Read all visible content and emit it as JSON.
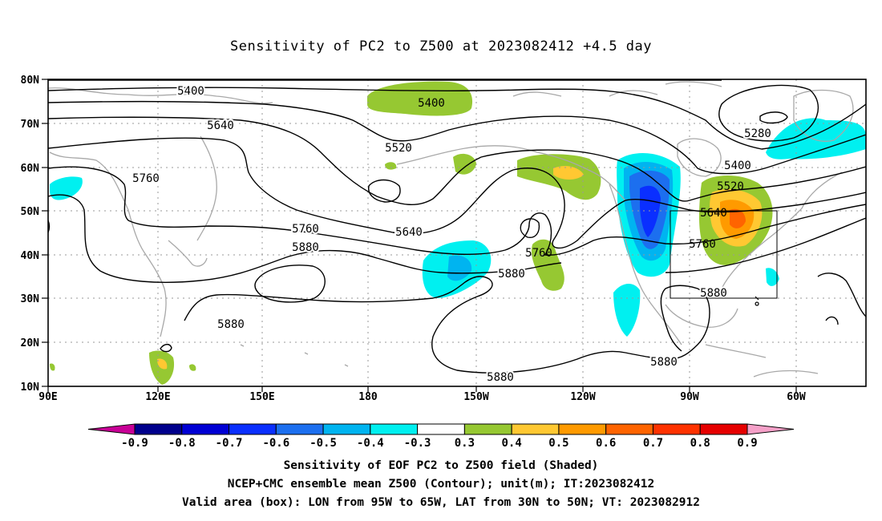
{
  "title": "Sensitivity of PC2 to Z500 at 2023082412 +4.5 day",
  "lat_labels": [
    "80N",
    "70N",
    "60N",
    "50N",
    "40N",
    "30N",
    "20N",
    "10N"
  ],
  "lon_labels": [
    "90E",
    "120E",
    "150E",
    "180",
    "150W",
    "120W",
    "90W",
    "60W"
  ],
  "contour_labels": [
    "5400",
    "5400",
    "5280",
    "5640",
    "5520",
    "5760",
    "5400",
    "5520",
    "5640",
    "5640",
    "5760",
    "5760",
    "5880",
    "5760",
    "5880",
    "5880",
    "5880",
    "5880",
    "5880"
  ],
  "colorbar": {
    "labels": [
      "-0.9",
      "-0.8",
      "-0.7",
      "-0.6",
      "-0.5",
      "-0.4",
      "-0.3",
      "0.3",
      "0.4",
      "0.5",
      "0.6",
      "0.7",
      "0.8",
      "0.9"
    ],
    "colors": [
      "#00008c",
      "#0000d4",
      "#0a2fff",
      "#1c6fef",
      "#00b4f0",
      "#00f0f0",
      "#ffffff",
      "#96c832",
      "#ffc832",
      "#ff9a00",
      "#ff6400",
      "#ff3200",
      "#e60000"
    ],
    "low_end_color": "#c80096",
    "high_end_color": "#f5a0c8"
  },
  "captions": {
    "line1": "Sensitivity of EOF PC2 to Z500 field (Shaded)",
    "line2": "NCEP+CMC ensemble mean Z500 (Contour); unit(m); IT:2023082412",
    "line3": "Valid area (box): LON from 95W to 65W, LAT from 30N to 50N; VT: 2023082912"
  },
  "valid_box": {
    "lon_west": "95W",
    "lon_east": "65W",
    "lat_south": "30N",
    "lat_north": "50N"
  }
}
